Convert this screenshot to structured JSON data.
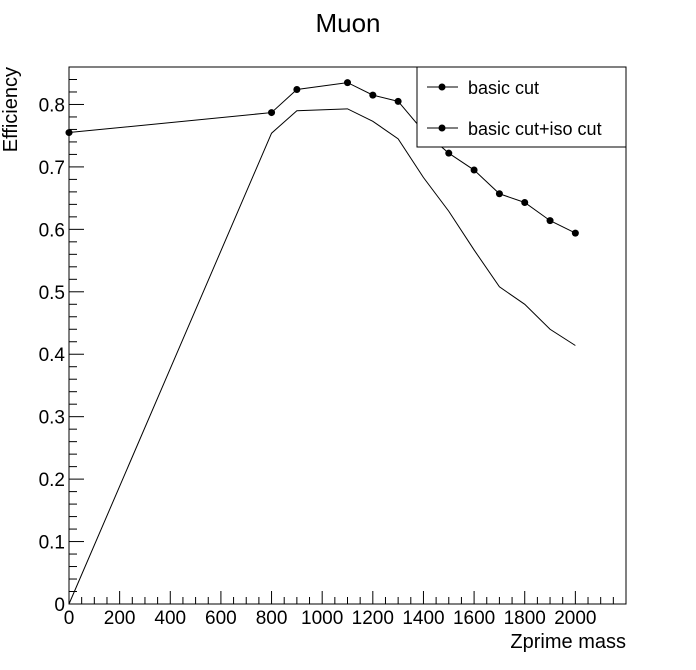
{
  "chart_data": {
    "type": "line",
    "title": "Muon",
    "xlabel": "Zprime mass",
    "ylabel": "Efficiency",
    "xlim": [
      0,
      2200
    ],
    "ylim": [
      0,
      0.86
    ],
    "x_ticks": [
      0,
      200,
      400,
      600,
      800,
      1000,
      1200,
      1400,
      1600,
      1800,
      2000
    ],
    "x_tick_labels": [
      "0",
      "200",
      "400",
      "600",
      "800",
      "1000",
      "1200",
      "1400",
      "1600",
      "1800",
      "2000"
    ],
    "y_ticks": [
      0,
      0.1,
      0.2,
      0.3,
      0.4,
      0.5,
      0.6,
      0.7,
      0.8
    ],
    "y_tick_labels": [
      "0",
      "0.1",
      "0.2",
      "0.3",
      "0.4",
      "0.5",
      "0.6",
      "0.7",
      "0.8"
    ],
    "grid": false,
    "legend_position": "top-right",
    "series": [
      {
        "name": "basic cut",
        "markers": true,
        "x": [
          0,
          800,
          900,
          1100,
          1200,
          1300,
          1400,
          1500,
          1600,
          1700,
          1800,
          1900,
          2000
        ],
        "y": [
          0.755,
          0.787,
          0.824,
          0.835,
          0.815,
          0.805,
          0.757,
          0.722,
          0.695,
          0.657,
          0.643,
          0.614,
          0.594
        ]
      },
      {
        "name": "basic cut+iso cut",
        "markers": false,
        "x": [
          0,
          800,
          900,
          1100,
          1200,
          1300,
          1400,
          1500,
          1600,
          1700,
          1800,
          1900,
          2000
        ],
        "y": [
          0.0,
          0.754,
          0.79,
          0.793,
          0.773,
          0.745,
          0.683,
          0.629,
          0.567,
          0.508,
          0.48,
          0.44,
          0.414
        ]
      }
    ]
  }
}
